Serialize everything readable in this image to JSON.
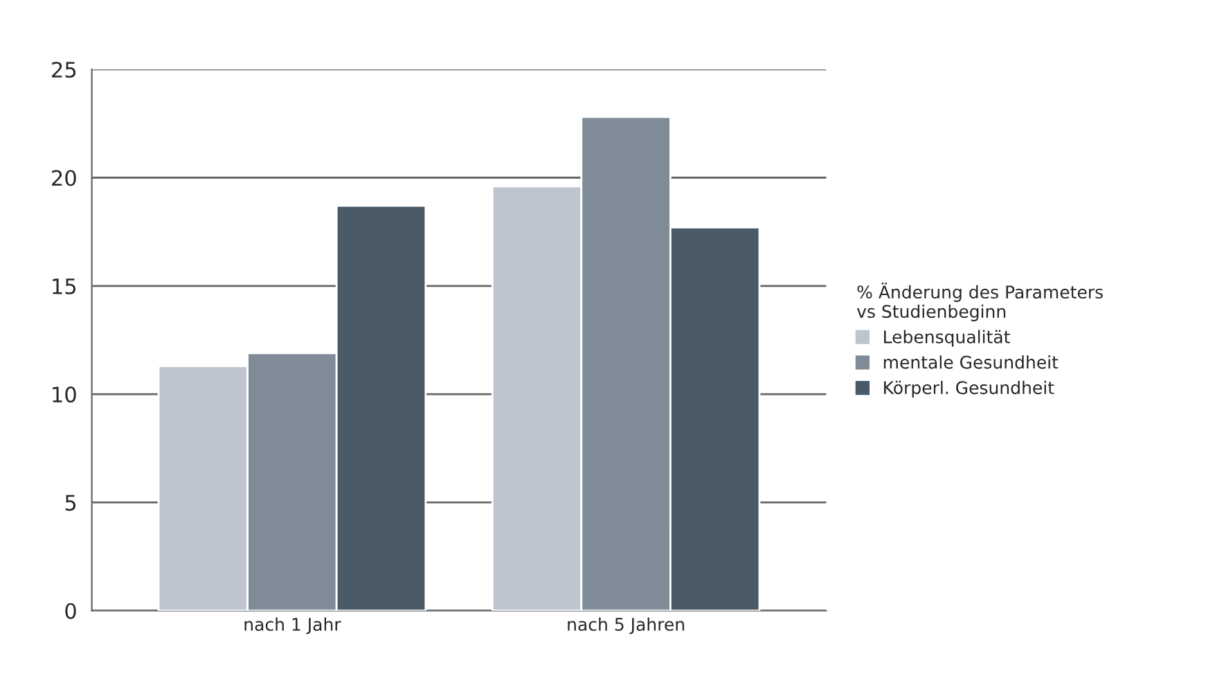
{
  "chart_data": {
    "type": "bar",
    "categories": [
      "nach 1 Jahr",
      "nach 5 Jahren"
    ],
    "series": [
      {
        "name": "Lebensqualität",
        "color": "#bec5ce",
        "values": [
          11.3,
          19.6
        ]
      },
      {
        "name": "mentale Gesundheit",
        "color": "#7f8c97",
        "values": [
          11.9,
          22.8
        ]
      },
      {
        "name": "Körperl. Gesundheit",
        "color": "#4a5a67",
        "values": [
          18.7,
          17.7
        ]
      }
    ],
    "legend_title": "% Änderung des Parameters\nvs Studienbeginn",
    "ylim": [
      0,
      25
    ],
    "yticks": [
      0,
      5,
      10,
      15,
      20,
      25
    ],
    "grid": "y",
    "legend": "right"
  }
}
